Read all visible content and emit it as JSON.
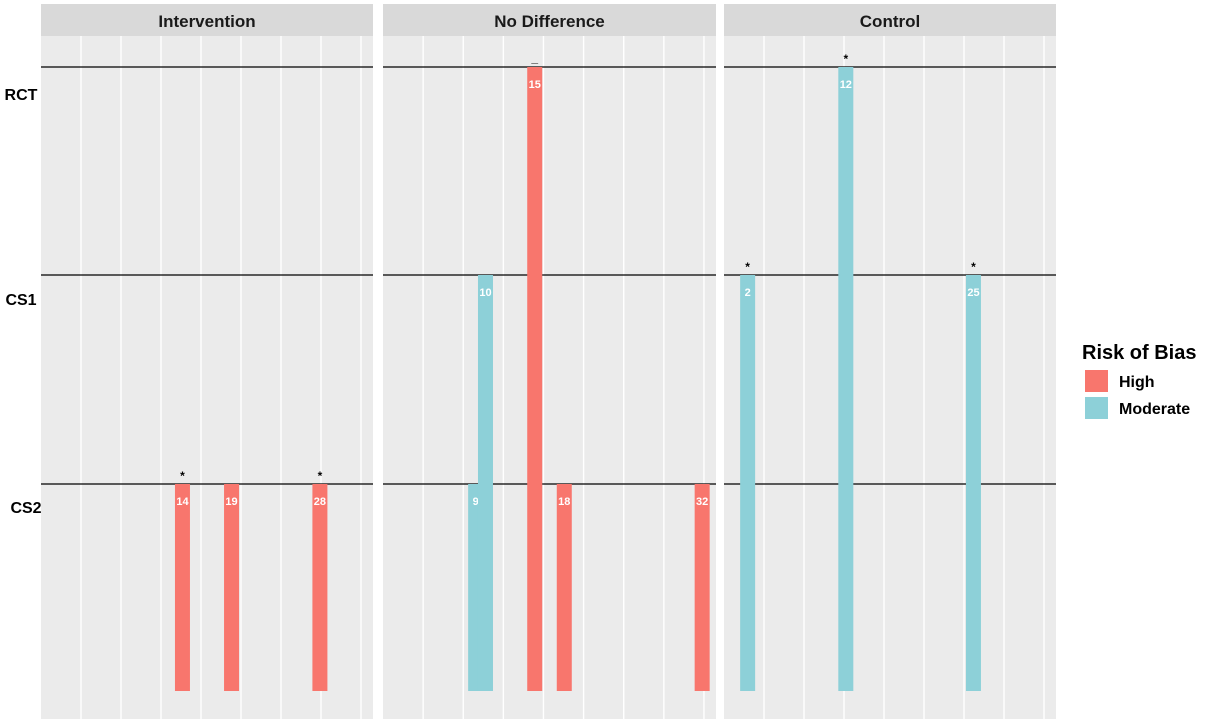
{
  "chart_data": {
    "type": "bar",
    "facets": [
      "Intervention",
      "No Difference",
      "Control"
    ],
    "rows": [
      "RCT",
      "CS1",
      "CS2"
    ],
    "legend": {
      "title": "Risk of Bias",
      "placement": "right",
      "items": [
        {
          "name": "High",
          "color": "#F8766D"
        },
        {
          "name": "Moderate",
          "color": "#8DD0D8"
        }
      ]
    },
    "bars": [
      {
        "facet": "Intervention",
        "x": 14,
        "level": "CS2",
        "risk": "High",
        "label": "14",
        "mark": "*"
      },
      {
        "facet": "Intervention",
        "x": 19,
        "level": "CS2",
        "risk": "High",
        "label": "19",
        "mark": ""
      },
      {
        "facet": "Intervention",
        "x": 28,
        "level": "CS2",
        "risk": "High",
        "label": "28",
        "mark": "*"
      },
      {
        "facet": "No Difference",
        "x": 9,
        "level": "CS2",
        "risk": "Moderate",
        "label": "9",
        "mark": ""
      },
      {
        "facet": "No Difference",
        "x": 10,
        "level": "CS1",
        "risk": "Moderate",
        "label": "10",
        "mark": ""
      },
      {
        "facet": "No Difference",
        "x": 15,
        "level": "RCT",
        "risk": "High",
        "label": "15",
        "mark": "_"
      },
      {
        "facet": "No Difference",
        "x": 18,
        "level": "CS2",
        "risk": "High",
        "label": "18",
        "mark": ""
      },
      {
        "facet": "No Difference",
        "x": 32,
        "level": "CS2",
        "risk": "High",
        "label": "32",
        "mark": ""
      },
      {
        "facet": "Control",
        "x": 2,
        "level": "CS1",
        "risk": "Moderate",
        "label": "2",
        "mark": "*"
      },
      {
        "facet": "Control",
        "x": 12,
        "level": "RCT",
        "risk": "Moderate",
        "label": "12",
        "mark": "*"
      },
      {
        "facet": "Control",
        "x": 25,
        "level": "CS1",
        "risk": "Moderate",
        "label": "25",
        "mark": "*"
      }
    ],
    "grid": true
  }
}
